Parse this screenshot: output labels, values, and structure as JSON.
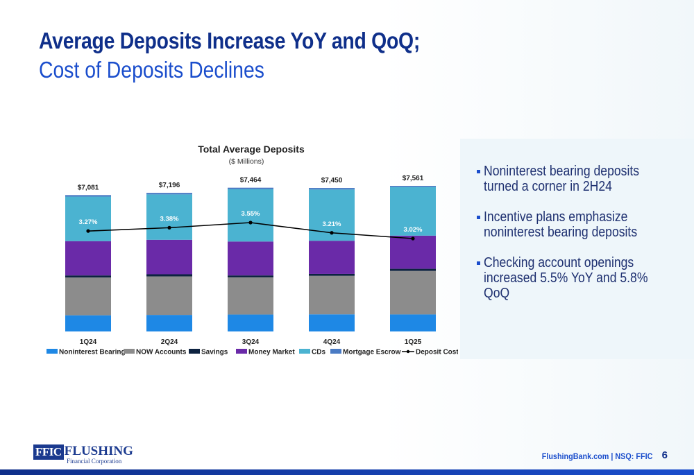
{
  "slide": {
    "title_line1": "Average Deposits Increase YoY and QoQ;",
    "title_line2": "Cost of Deposits Declines",
    "bullets": [
      "Noninterest bearing deposits turned a corner in 2H24",
      "Incentive plans emphasize noninterest bearing deposits",
      "Checking account openings increased 5.5% YoY and 5.8% QoQ"
    ],
    "footer": {
      "logo_box": "FFIC",
      "logo_name": "FLUSHING",
      "logo_sub": "Financial Corporation",
      "site": "FlushingBank.com | NSQ: FFIC",
      "page": "6"
    }
  },
  "colors": {
    "title_dark": "#0f2f8a",
    "title_light": "#1a4dcc",
    "noninterest": "#1e88e5",
    "now": "#8c8c8c",
    "savings": "#0d2240",
    "money_market": "#6a2aa8",
    "cds": "#4bb3d1",
    "escrow": "#4a7bc4",
    "line": "#000000"
  },
  "chart_data": {
    "type": "bar",
    "stacked": true,
    "title": "Total Average Deposits",
    "subtitle": "($ Millions)",
    "categories": [
      "1Q24",
      "2Q24",
      "3Q24",
      "4Q24",
      "1Q25"
    ],
    "totals": [
      "$7,081",
      "$7,196",
      "$7,464",
      "$7,450",
      "$7,561"
    ],
    "series": [
      {
        "name": "Noninterest Bearing",
        "color": "#1e88e5",
        "values": [
          840,
          860,
          880,
          890,
          885
        ]
      },
      {
        "name": "NOW Accounts",
        "color": "#8c8c8c",
        "values": [
          1960,
          2000,
          1930,
          2000,
          2260
        ]
      },
      {
        "name": "Savings",
        "color": "#0d2240",
        "values": [
          110,
          110,
          100,
          100,
          110
        ]
      },
      {
        "name": "Money Market",
        "color": "#6a2aa8",
        "values": [
          1780,
          1790,
          1760,
          1720,
          1720
        ]
      },
      {
        "name": "CDs",
        "color": "#4bb3d1",
        "values": [
          2311,
          2356,
          2714,
          2660,
          2526
        ]
      },
      {
        "name": "Mortgage Escrow",
        "color": "#4a7bc4",
        "values": [
          80,
          80,
          80,
          80,
          60
        ]
      }
    ],
    "line_series": {
      "name": "Deposit Cost",
      "color": "#000000",
      "values": [
        3.27,
        3.38,
        3.55,
        3.21,
        3.02
      ],
      "labels": [
        "3.27%",
        "3.38%",
        "3.55%",
        "3.21%",
        "3.02%"
      ]
    },
    "ylim": [
      0,
      7561
    ],
    "grid": false,
    "legend": "bottom"
  }
}
